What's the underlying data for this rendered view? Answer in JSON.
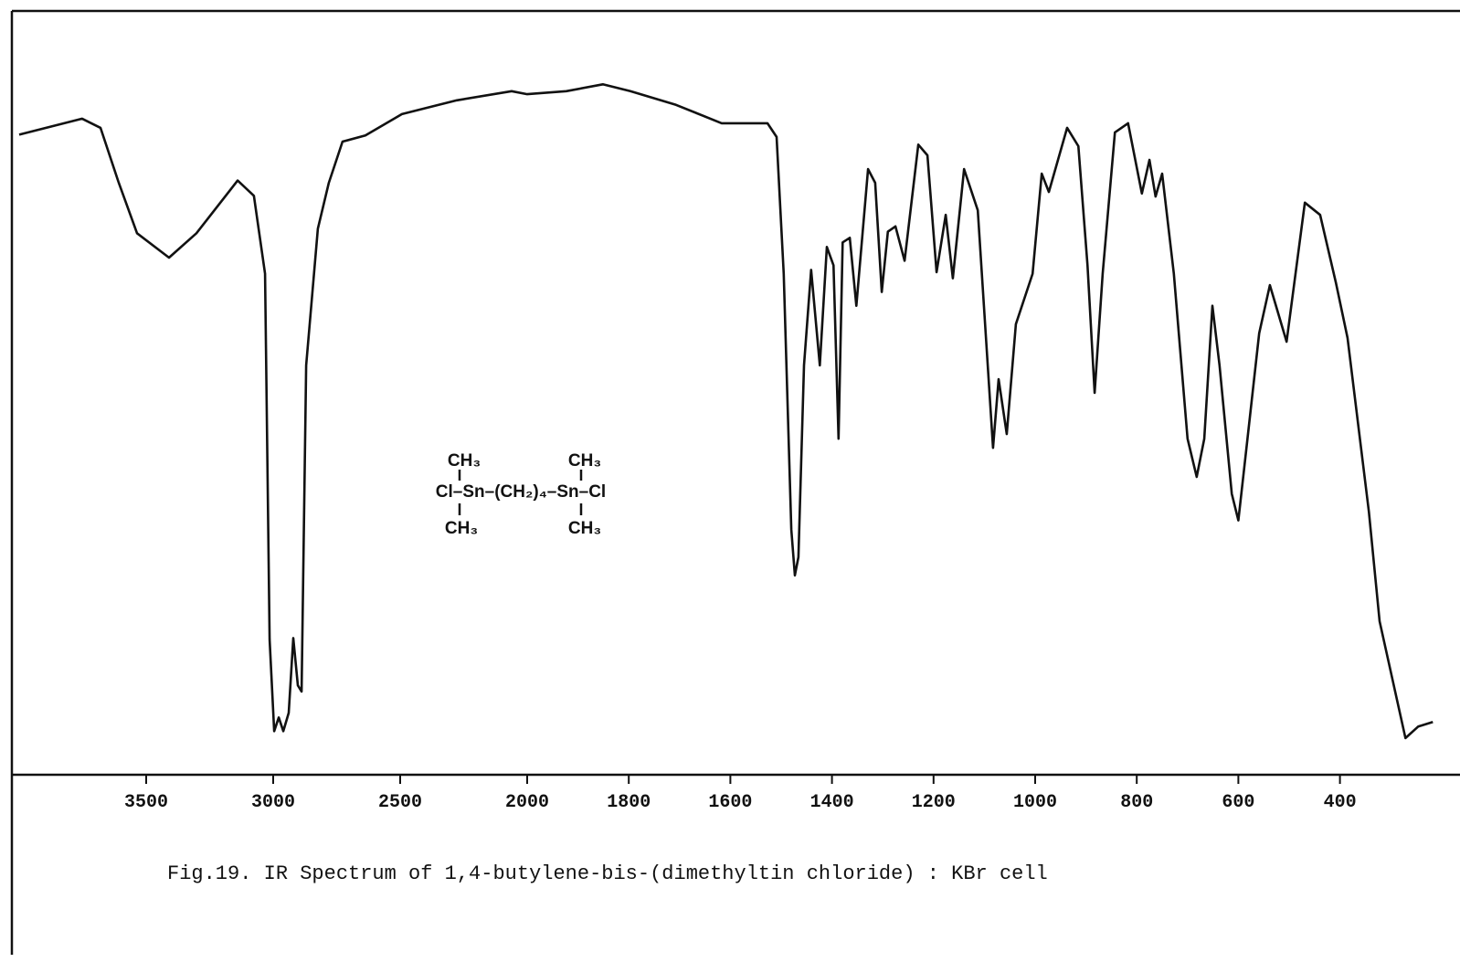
{
  "chart_data": {
    "type": "line",
    "caption": "Fig.19. IR Spectrum of 1,4-butylene-bis-(dimethyltin chloride) : KBr cell",
    "structure": {
      "top_left": "CH₃",
      "top_right": "CH₃",
      "main": "Cl–Sn–(CH₂)₄–Sn–Cl",
      "bottom_left": "CH₃",
      "bottom_right": "CH₃"
    },
    "xlim": [
      4000,
      200
    ],
    "x_expansion_below": 2000,
    "x_expansion_factor": 2,
    "xticks": [
      3500,
      3000,
      2500,
      2000,
      1800,
      1600,
      1400,
      1200,
      1000,
      800,
      600,
      400
    ],
    "ylim": [
      0,
      100
    ],
    "color": "#111111",
    "x": [
      4000,
      3752,
      3680,
      3608,
      3536,
      3410,
      3302,
      3140,
      3076,
      3032,
      3014,
      2996,
      2978,
      2960,
      2939,
      2921,
      2903,
      2888,
      2870,
      2824,
      2781,
      2763,
      2727,
      2637,
      2493,
      2277,
      2061,
      2000,
      1923,
      1851,
      1797,
      1707,
      1617,
      1527,
      1509,
      1495,
      1480,
      1473,
      1466,
      1455,
      1441,
      1424,
      1410,
      1397,
      1387,
      1379,
      1365,
      1352,
      1329,
      1315,
      1302,
      1290,
      1275,
      1257,
      1230,
      1212,
      1194,
      1176,
      1162,
      1140,
      1113,
      1083,
      1072,
      1056,
      1038,
      1005,
      987,
      973,
      937,
      915,
      897,
      883,
      867,
      843,
      817,
      790,
      775,
      763,
      750,
      727,
      700,
      682,
      667,
      651,
      637,
      613,
      600,
      582,
      559,
      538,
      505,
      469,
      439,
      408,
      385,
      343,
      322,
      271,
      246,
      217
    ],
    "values": [
      83.8,
      85.9,
      84.7,
      77.5,
      70.9,
      67.7,
      70.9,
      77.8,
      75.8,
      65.6,
      17.7,
      5.7,
      7.5,
      5.7,
      8.1,
      17.9,
      11.7,
      10.9,
      53.6,
      71.5,
      77.5,
      79.3,
      82.9,
      83.7,
      86.5,
      88.3,
      89.5,
      89.1,
      89.5,
      90.4,
      89.5,
      87.7,
      85.3,
      85.3,
      83.5,
      65.6,
      32.1,
      26.1,
      28.5,
      53.6,
      66.1,
      53.6,
      69.1,
      66.7,
      44.0,
      69.7,
      70.3,
      61.4,
      79.3,
      77.5,
      63.2,
      71.1,
      71.8,
      67.3,
      82.5,
      81.1,
      65.8,
      73.3,
      65.0,
      79.3,
      73.9,
      42.8,
      51.8,
      44.6,
      59.0,
      65.6,
      78.7,
      76.3,
      84.7,
      82.3,
      66.7,
      50.0,
      65.6,
      84.1,
      85.3,
      76.1,
      80.5,
      75.7,
      78.7,
      65.6,
      44.0,
      39.0,
      44.0,
      61.4,
      53.6,
      36.8,
      33.3,
      44.0,
      57.8,
      64.1,
      56.7,
      74.9,
      73.3,
      64.4,
      57.2,
      34.4,
      20.1,
      4.8,
      6.3,
      6.9
    ]
  }
}
